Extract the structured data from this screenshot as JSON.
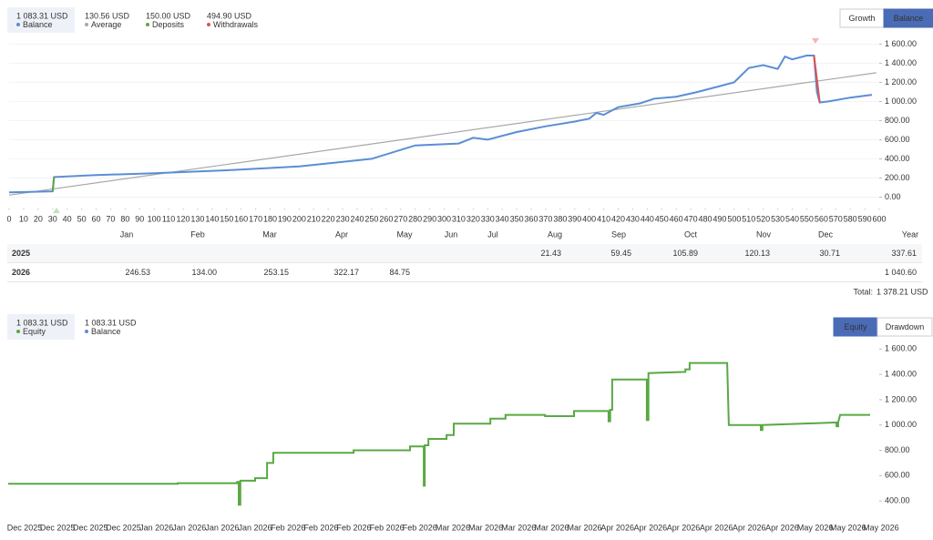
{
  "chart_data": [
    {
      "type": "line",
      "tabs": [
        "Growth",
        "Balance"
      ],
      "active_tab": 1,
      "series": [
        {
          "name": "Balance",
          "summary": "1 083.31 USD",
          "color": "#5b8dd6",
          "x": [
            0,
            30,
            31,
            60,
            100,
            150,
            200,
            250,
            280,
            310,
            320,
            330,
            350,
            370,
            390,
            400,
            405,
            410,
            420,
            435,
            445,
            460,
            475,
            490,
            500,
            510,
            520,
            530,
            535,
            540,
            550,
            555,
            557,
            559,
            565,
            580,
            595
          ],
          "values": [
            50,
            60,
            210,
            230,
            250,
            280,
            320,
            400,
            540,
            560,
            620,
            600,
            680,
            740,
            790,
            820,
            880,
            860,
            940,
            980,
            1030,
            1050,
            1100,
            1160,
            1200,
            1350,
            1380,
            1340,
            1470,
            1440,
            1480,
            1480,
            1100,
            990,
            1000,
            1040,
            1070
          ]
        },
        {
          "name": "Average",
          "summary": "130.56 USD",
          "color": "#a8a8a8",
          "x": [
            0,
            598
          ],
          "values": [
            20,
            1300
          ]
        },
        {
          "name": "Deposits",
          "summary": "150.00 USD",
          "color": "#5aa844",
          "x": [
            30,
            31
          ],
          "values": [
            60,
            210
          ]
        },
        {
          "name": "Withdrawals",
          "summary": "494.90 USD",
          "color": "#d9534f",
          "x": [
            555,
            559
          ],
          "values": [
            1480,
            990
          ]
        }
      ],
      "xlim": [
        0,
        600
      ],
      "xticks": [
        0,
        10,
        20,
        30,
        40,
        50,
        60,
        70,
        80,
        90,
        100,
        110,
        120,
        130,
        140,
        150,
        160,
        170,
        180,
        190,
        200,
        210,
        220,
        230,
        240,
        250,
        260,
        270,
        280,
        290,
        300,
        310,
        320,
        330,
        340,
        350,
        360,
        370,
        380,
        390,
        400,
        410,
        420,
        430,
        440,
        450,
        460,
        470,
        480,
        490,
        500,
        510,
        520,
        530,
        540,
        550,
        560,
        570,
        580,
        590,
        600
      ],
      "ylim": [
        -110,
        1680
      ],
      "yticks": [
        {
          "value": 0,
          "label": "0.00"
        },
        {
          "value": 200,
          "label": "200.00"
        },
        {
          "value": 400,
          "label": "400.00"
        },
        {
          "value": 600,
          "label": "600.00"
        },
        {
          "value": 800,
          "label": "800.00"
        },
        {
          "value": 1000,
          "label": "1 000.00"
        },
        {
          "value": 1200,
          "label": "1 200.00"
        },
        {
          "value": 1400,
          "label": "1 400.00"
        },
        {
          "value": 1600,
          "label": "1 600.00"
        }
      ],
      "grid": true
    },
    {
      "type": "line",
      "tabs": [
        "Equity",
        "Drawdown"
      ],
      "active_tab": 0,
      "series": [
        {
          "name": "Equity",
          "summary": "1 083.31 USD",
          "color": "#5aa844",
          "x": [
            -0.5,
            4.65,
            4.65,
            6.45,
            6.45,
            6.5,
            6.5,
            6.55,
            6.55,
            7.0,
            7.0,
            7.36,
            7.36,
            7.55,
            7.55,
            9.99,
            9.99,
            11.7,
            11.7,
            12.12,
            12.12,
            12.15,
            12.15,
            12.26,
            12.26,
            12.81,
            12.81,
            13.03,
            13.03,
            14.14,
            14.14,
            14.6,
            14.6,
            15.8,
            15.8,
            16.68,
            16.68,
            17.73,
            17.73,
            17.78,
            17.78,
            17.84,
            17.84,
            18.89,
            18.89,
            18.94,
            18.94,
            20.06,
            20.06,
            20.19,
            20.19,
            21.33,
            21.38,
            22.35,
            22.35,
            22.4,
            22.4,
            23.6,
            24.65,
            24.65,
            24.7,
            24.7,
            24.76,
            25.67
          ],
          "values": [
            535,
            535,
            540,
            540,
            550,
            550,
            370,
            370,
            560,
            560,
            580,
            580,
            700,
            700,
            780,
            780,
            800,
            800,
            830,
            830,
            520,
            520,
            840,
            840,
            890,
            890,
            920,
            920,
            1010,
            1010,
            1050,
            1050,
            1080,
            1080,
            1070,
            1070,
            1110,
            1110,
            1030,
            1030,
            1120,
            1120,
            1360,
            1360,
            1040,
            1040,
            1410,
            1420,
            1440,
            1440,
            1490,
            1490,
            1000,
            1000,
            960,
            960,
            1000,
            1010,
            1020,
            990,
            990,
            1020,
            1080,
            1080
          ]
        },
        {
          "name": "Balance",
          "summary": "1 083.31 USD",
          "color": "#5b8dd6"
        }
      ],
      "categories": [
        "Dec 2025",
        "Dec 2025",
        "Dec 2025",
        "Dec 2025",
        "Jan 2026",
        "Jan 2026",
        "Jan 2026",
        "Jan 2026",
        "Feb 2026",
        "Feb 2026",
        "Feb 2026",
        "Feb 2026",
        "Feb 2026",
        "Mar 2026",
        "Mar 2026",
        "Mar 2026",
        "Mar 2026",
        "Mar 2026",
        "Apr 2026",
        "Apr 2026",
        "Apr 2026",
        "Apr 2026",
        "Apr 2026",
        "Apr 2026",
        "May 2026",
        "May 2026",
        "May 2026"
      ],
      "ylim": [
        300,
        1660
      ],
      "yticks": [
        {
          "value": 400,
          "label": "400.00"
        },
        {
          "value": 600,
          "label": "600.00"
        },
        {
          "value": 800,
          "label": "800.00"
        },
        {
          "value": 1000,
          "label": "1 000.00"
        },
        {
          "value": 1200,
          "label": "1 200.00"
        },
        {
          "value": 1400,
          "label": "1 400.00"
        },
        {
          "value": 1600,
          "label": "1 600.00"
        }
      ],
      "grid": false
    }
  ],
  "monthly_table": {
    "columns": [
      "Jan",
      "Feb",
      "Mar",
      "Apr",
      "May",
      "Jun",
      "Jul",
      "Aug",
      "Sep",
      "Oct",
      "Nov",
      "Dec",
      "Year"
    ],
    "rows": [
      {
        "year": "2025",
        "cells": [
          null,
          null,
          null,
          null,
          null,
          null,
          null,
          "21.43",
          "59.45",
          "105.89",
          "120.13",
          "30.71",
          "337.61"
        ]
      },
      {
        "year": "2026",
        "cells": [
          "246.53",
          "134.00",
          "253.15",
          "322.17",
          "84.75",
          null,
          null,
          null,
          null,
          null,
          null,
          null,
          "1 040.60"
        ]
      }
    ],
    "total_label": "Total:",
    "total_value": "1 378.21 USD"
  }
}
